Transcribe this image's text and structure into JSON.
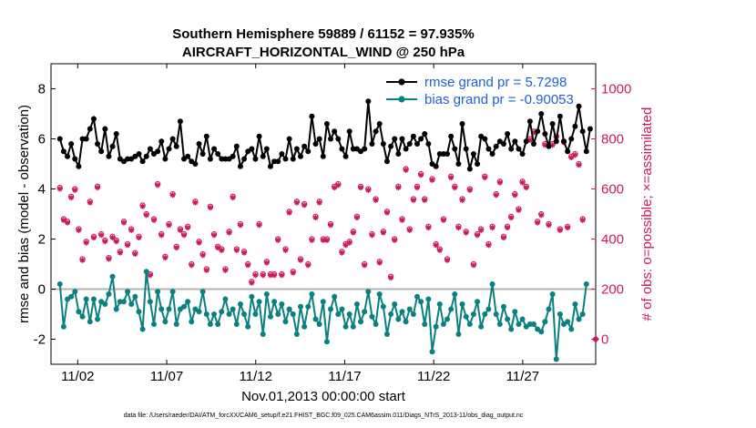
{
  "chart_data": {
    "type": "line",
    "title": "Southern Hemisphere 59889 / 61152 = 97.935%",
    "subtitle": "AIRCRAFT_HORIZONTAL_WIND @ 250 hPa",
    "xlabel": "Nov.01,2013 00:00:00 start",
    "ylabel_left": "rmse and bias (model - observation)",
    "ylabel_right": "# of obs: o=possible; ×=assimilated",
    "footnote": "data file: /Users/raeder/DAI/ATM_forcXX/CAM6_setup/f.e21.FHIST_BGC.f09_025.CAM6assim.011/Diags_NTrS_2013-11/obs_diag_output.nc",
    "xlim": [
      0.5,
      31.1
    ],
    "ylim_left": [
      -3,
      9
    ],
    "ylim_right": [
      -100,
      1100
    ],
    "x_ticks": [
      2,
      7,
      12,
      17,
      22,
      27
    ],
    "x_tick_labels": [
      "11/02",
      "11/07",
      "11/12",
      "11/17",
      "11/22",
      "11/27"
    ],
    "y_ticks_left": [
      -2,
      0,
      2,
      4,
      6,
      8
    ],
    "y_tick_labels_left": [
      "-2",
      "0",
      "2",
      "4",
      "6",
      "8"
    ],
    "y_ticks_right": [
      0,
      200,
      400,
      600,
      800,
      1000
    ],
    "y_tick_labels_right": [
      "0",
      "200",
      "400",
      "600",
      "800",
      "1000"
    ],
    "zero_line": 0,
    "legend": [
      {
        "label": "rmse grand pr = 5.7298",
        "color": "#000000"
      },
      {
        "label": "bias grand pr = -0.90053",
        "color": "#0a8080"
      }
    ],
    "colors": {
      "rmse": "#000000",
      "bias": "#0a8080",
      "obs": "#cc1a5a",
      "legend_text": "#1f5fd6",
      "zero_line": "#b3b3b3"
    },
    "series": [
      {
        "name": "rmse",
        "values": [
          6.0,
          5.5,
          5.3,
          5.8,
          5.2,
          4.9,
          6.0,
          6.0,
          6.4,
          6.8,
          5.8,
          5.5,
          6.4,
          5.3,
          5.7,
          6.2,
          5.2,
          5.1,
          5.2,
          5.2,
          5.3,
          5.4,
          5.1,
          5.3,
          5.6,
          5.4,
          5.5,
          5.9,
          5.2,
          5.6,
          6.0,
          5.7,
          6.7,
          5.2,
          5.3,
          5.1,
          5.0,
          5.8,
          5.4,
          6.1,
          5.2,
          5.6,
          5.4,
          5.2,
          5.2,
          5.2,
          5.3,
          5.7,
          4.9,
          5.2,
          5.5,
          5.6,
          5.2,
          6.1,
          5.3,
          5.6,
          4.9,
          5.1,
          5.1,
          5.4,
          5.2,
          6.0,
          5.2,
          5.6,
          5.3,
          5.7,
          5.5,
          6.9,
          5.8,
          6.0,
          5.3,
          6.6,
          6.0,
          6.3,
          6.0,
          5.6,
          5.3,
          6.3,
          5.6,
          5.6,
          5.5,
          5.6,
          7.5,
          5.8,
          6.3,
          6.6,
          5.8,
          5.1,
          5.7,
          6.0,
          5.4,
          6.0,
          5.6,
          5.8,
          6.1,
          5.8,
          6.0,
          6.2,
          5.8,
          5.0,
          4.9,
          5.4,
          5.4,
          5.4,
          6.1,
          5.6,
          5.0,
          6.6,
          5.6,
          4.8,
          5.4,
          5.0,
          6.1,
          6.0,
          5.6,
          5.4,
          5.7,
          5.9,
          5.8,
          6.2,
          5.6,
          5.9,
          5.6,
          5.4,
          5.9,
          6.7,
          5.8,
          6.3,
          7.0,
          6.2,
          5.7,
          6.6,
          5.9,
          6.9,
          5.9,
          5.5,
          6.0,
          6.5,
          7.3,
          6.3,
          5.5,
          6.4
        ]
      },
      {
        "name": "bias",
        "values": [
          0.2,
          -1.5,
          -0.4,
          -0.3,
          -0.1,
          -0.9,
          -1.1,
          -0.4,
          -1.3,
          -0.4,
          -1.2,
          -0.5,
          -0.6,
          -0.2,
          0.5,
          -0.8,
          -0.5,
          -0.5,
          -0.1,
          -0.6,
          -0.3,
          -0.9,
          -1.6,
          0.7,
          -0.5,
          -1.4,
          -0.1,
          -0.8,
          -1.3,
          -0.8,
          -0.1,
          -1.4,
          -0.8,
          -0.7,
          -0.5,
          -1.3,
          -0.8,
          -0.9,
          -0.1,
          -1.0,
          -1.4,
          -1.0,
          -1.4,
          -0.9,
          -0.4,
          -1.0,
          -0.8,
          -1.4,
          -0.6,
          -1.0,
          -1.5,
          -0.3,
          -1.0,
          -0.5,
          -1.8,
          -0.2,
          -1.1,
          -0.5,
          -1.0,
          -0.6,
          -1.3,
          -0.8,
          -1.0,
          -1.8,
          -0.7,
          -1.5,
          -0.7,
          -0.2,
          -1.2,
          -1.4,
          -0.5,
          -2.1,
          -0.8,
          -0.3,
          -1.0,
          -0.8,
          -1.5,
          -1.0,
          -1.5,
          -0.6,
          -1.3,
          -0.9,
          -0.1,
          -1.1,
          -1.4,
          -0.2,
          -0.7,
          -1.8,
          -1.0,
          -0.6,
          -1.2,
          -0.9,
          -1.3,
          -0.8,
          -1.0,
          -0.3,
          -0.5,
          -1.4,
          -0.4,
          -2.5,
          -1.5,
          -0.6,
          -1.4,
          -1.2,
          -0.8,
          -0.2,
          -1.8,
          -0.6,
          -1.1,
          -1.4,
          -1.0,
          -0.5,
          -1.5,
          -1.0,
          -0.8,
          0.2,
          -1.0,
          -1.4,
          -0.7,
          -1.2,
          -1.6,
          -0.9,
          -1.4,
          -1.2,
          -1.5,
          -1.4,
          -1.4,
          -1.6,
          -1.7,
          -1.3,
          -0.8,
          -0.2,
          -2.8,
          -1.0,
          -1.4,
          -1.3,
          -1.6,
          -0.6,
          -1.2,
          -1.0,
          0.2
        ]
      },
      {
        "name": "obs_possible",
        "values": [
          605,
          480,
          470,
          570,
          600,
          440,
          320,
          390,
          550,
          410,
          610,
          420,
          395,
          325,
          410,
          395,
          350,
          470,
          380,
          440,
          345,
          410,
          535,
          500,
          260,
          480,
          620,
          420,
          330,
          460,
          580,
          370,
          440,
          420,
          450,
          300,
          550,
          390,
          340,
          280,
          530,
          420,
          370,
          360,
          280,
          430,
          570,
          360,
          460,
          350,
          300,
          230,
          260,
          460,
          260,
          310,
          260,
          260,
          400,
          260,
          360,
          510,
          270,
          550,
          320,
          540,
          300,
          400,
          490,
          550,
          400,
          400,
          460,
          610,
          620,
          350,
          380,
          390,
          430,
          490,
          610,
          300,
          600,
          420,
          560,
          310,
          430,
          510,
          250,
          400,
          610,
          480,
          680,
          440,
          560,
          610,
          660,
          560,
          450,
          640,
          380,
          360,
          480,
          320,
          650,
          610,
          450,
          560,
          430,
          600,
          300,
          420,
          440,
          650,
          380,
          450,
          580,
          630,
          410,
          450,
          490,
          580,
          520,
          630,
          610,
          800,
          830,
          470,
          500,
          780,
          460,
          780,
          810,
          440,
          790,
          450,
          730,
          740,
          700,
          480
        ]
      },
      {
        "name": "obs_assimilated",
        "values": [
          600,
          475,
          465,
          565,
          595,
          435,
          315,
          385,
          545,
          405,
          605,
          415,
          390,
          320,
          405,
          390,
          345,
          465,
          375,
          435,
          340,
          405,
          530,
          495,
          255,
          475,
          615,
          415,
          325,
          455,
          575,
          365,
          435,
          415,
          445,
          295,
          545,
          385,
          335,
          275,
          525,
          415,
          365,
          355,
          275,
          425,
          565,
          355,
          455,
          345,
          295,
          225,
          255,
          455,
          255,
          305,
          255,
          255,
          395,
          255,
          355,
          505,
          265,
          545,
          315,
          535,
          295,
          395,
          485,
          545,
          395,
          395,
          455,
          605,
          615,
          345,
          375,
          385,
          425,
          485,
          605,
          295,
          595,
          415,
          555,
          305,
          425,
          505,
          245,
          395,
          605,
          475,
          675,
          435,
          555,
          605,
          655,
          555,
          445,
          635,
          375,
          355,
          475,
          315,
          645,
          605,
          445,
          555,
          425,
          595,
          295,
          415,
          435,
          645,
          375,
          445,
          575,
          625,
          405,
          445,
          485,
          575,
          515,
          625,
          605,
          795,
          825,
          465,
          495,
          775,
          455,
          775,
          805,
          435,
          785,
          445,
          725,
          735,
          695,
          475
        ]
      }
    ]
  }
}
